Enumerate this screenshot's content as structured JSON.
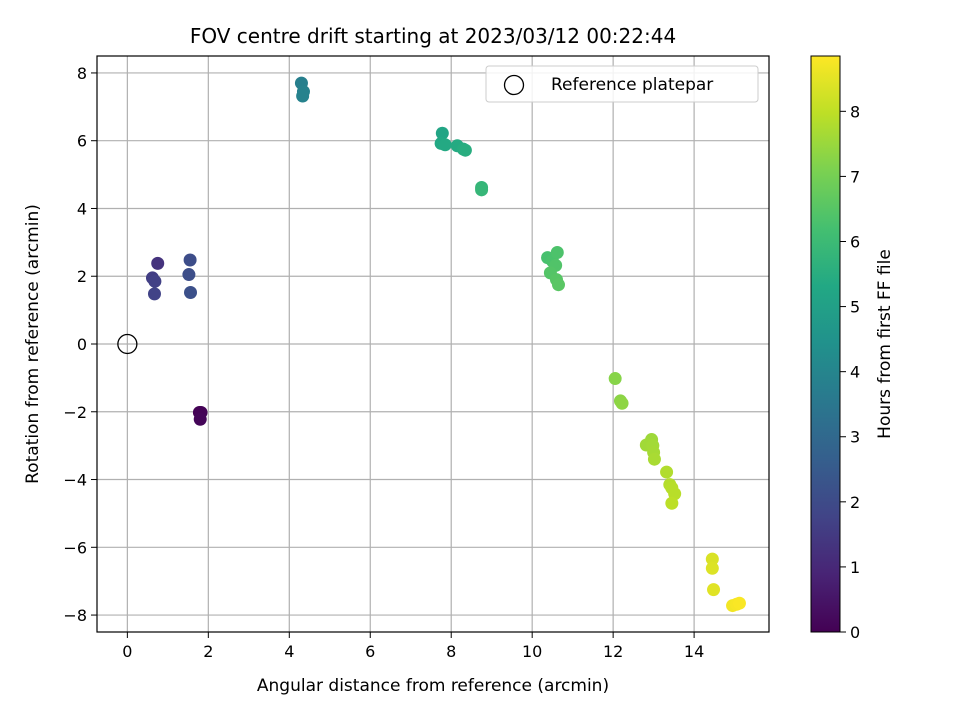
{
  "chart_data": {
    "type": "scatter",
    "title": "FOV centre drift starting at 2023/03/12 00:22:44",
    "xlabel": "Angular distance from reference (arcmin)",
    "ylabel": "Rotation from reference (arcmin)",
    "xlim": [
      -0.75,
      15.85
    ],
    "ylim": [
      -8.5,
      8.5
    ],
    "xticks": [
      0,
      2,
      4,
      6,
      8,
      10,
      12,
      14
    ],
    "yticks": [
      -8,
      -6,
      -4,
      -2,
      0,
      2,
      4,
      6,
      8
    ],
    "grid": true,
    "legend": {
      "position": "upper-right",
      "entries": [
        "Reference platepar"
      ]
    },
    "reference_point": {
      "label": "Reference platepar",
      "x": 0,
      "y": 0
    },
    "colorbar": {
      "label": "Hours from first FF file",
      "colormap": "viridis",
      "range": [
        0,
        8.85
      ],
      "ticks": [
        0,
        1,
        2,
        3,
        4,
        5,
        6,
        7,
        8
      ]
    },
    "points": [
      {
        "x": 1.78,
        "y": -2.02,
        "hours": 0.02
      },
      {
        "x": 1.82,
        "y": -2.02,
        "hours": 0.05
      },
      {
        "x": 1.8,
        "y": -2.22,
        "hours": 0.1
      },
      {
        "x": 0.75,
        "y": 2.38,
        "hours": 1.3
      },
      {
        "x": 0.62,
        "y": 1.95,
        "hours": 1.6
      },
      {
        "x": 0.68,
        "y": 1.85,
        "hours": 1.7
      },
      {
        "x": 0.67,
        "y": 1.48,
        "hours": 1.75
      },
      {
        "x": 1.55,
        "y": 2.48,
        "hours": 2.05
      },
      {
        "x": 1.52,
        "y": 2.05,
        "hours": 2.1
      },
      {
        "x": 1.56,
        "y": 1.52,
        "hours": 2.15
      },
      {
        "x": 4.3,
        "y": 7.7,
        "hours": 3.8
      },
      {
        "x": 4.35,
        "y": 7.45,
        "hours": 3.85
      },
      {
        "x": 4.33,
        "y": 7.32,
        "hours": 3.9
      },
      {
        "x": 7.78,
        "y": 6.22,
        "hours": 5.2
      },
      {
        "x": 7.75,
        "y": 5.92,
        "hours": 5.3
      },
      {
        "x": 7.85,
        "y": 5.88,
        "hours": 5.35
      },
      {
        "x": 8.15,
        "y": 5.85,
        "hours": 5.4
      },
      {
        "x": 8.3,
        "y": 5.75,
        "hours": 5.45
      },
      {
        "x": 8.35,
        "y": 5.72,
        "hours": 5.5
      },
      {
        "x": 8.75,
        "y": 4.62,
        "hours": 5.8
      },
      {
        "x": 8.75,
        "y": 4.55,
        "hours": 5.85
      },
      {
        "x": 10.38,
        "y": 2.55,
        "hours": 6.25
      },
      {
        "x": 10.5,
        "y": 2.45,
        "hours": 6.3
      },
      {
        "x": 10.62,
        "y": 2.7,
        "hours": 6.35
      },
      {
        "x": 10.58,
        "y": 2.32,
        "hours": 6.4
      },
      {
        "x": 10.45,
        "y": 2.1,
        "hours": 6.45
      },
      {
        "x": 10.6,
        "y": 1.9,
        "hours": 6.5
      },
      {
        "x": 10.65,
        "y": 1.75,
        "hours": 6.55
      },
      {
        "x": 12.05,
        "y": -1.02,
        "hours": 7.25
      },
      {
        "x": 12.18,
        "y": -1.68,
        "hours": 7.3
      },
      {
        "x": 12.22,
        "y": -1.75,
        "hours": 7.35
      },
      {
        "x": 12.95,
        "y": -2.82,
        "hours": 7.55
      },
      {
        "x": 12.82,
        "y": -2.98,
        "hours": 7.6
      },
      {
        "x": 12.98,
        "y": -3.0,
        "hours": 7.62
      },
      {
        "x": 13.0,
        "y": -3.2,
        "hours": 7.65
      },
      {
        "x": 13.02,
        "y": -3.4,
        "hours": 7.7
      },
      {
        "x": 13.32,
        "y": -3.78,
        "hours": 7.8
      },
      {
        "x": 13.4,
        "y": -4.15,
        "hours": 7.85
      },
      {
        "x": 13.45,
        "y": -4.25,
        "hours": 7.88
      },
      {
        "x": 13.52,
        "y": -4.42,
        "hours": 7.9
      },
      {
        "x": 13.45,
        "y": -4.7,
        "hours": 7.95
      },
      {
        "x": 14.45,
        "y": -6.35,
        "hours": 8.35
      },
      {
        "x": 14.45,
        "y": -6.62,
        "hours": 8.4
      },
      {
        "x": 14.48,
        "y": -7.25,
        "hours": 8.45
      },
      {
        "x": 14.95,
        "y": -7.72,
        "hours": 8.7
      },
      {
        "x": 15.05,
        "y": -7.68,
        "hours": 8.75
      },
      {
        "x": 15.12,
        "y": -7.65,
        "hours": 8.8
      }
    ]
  }
}
